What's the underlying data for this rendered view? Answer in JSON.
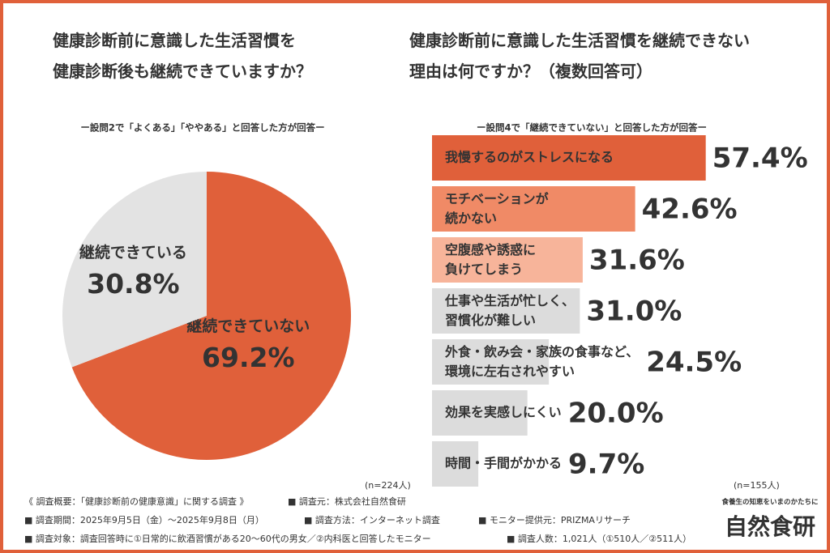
{
  "chart_data": [
    {
      "type": "pie",
      "title": "健康診断前に意識した生活習慣を\n健康診断後も継続できていますか？",
      "subtitle": "ー設問2で「よくある」「ややある」と回答した方が回答ー",
      "note": "(n=224人)",
      "categories": [
        "継続できている",
        "継続できていない"
      ],
      "values": [
        30.8,
        69.2
      ],
      "value_labels": [
        "30.8%",
        "69.2%"
      ],
      "colors": [
        "#e3e3e3",
        "#e0603a"
      ],
      "label_colors": [
        "#666666",
        "#ffffff"
      ]
    },
    {
      "type": "hbar",
      "title": "健康診断前に意識した生活習慣を継続できない\n理由は何ですか？（複数回答可）",
      "subtitle": "ー設問4で「継続できていない」と回答した方が回答ー",
      "note": "(n=155人)",
      "categories": [
        "我慢するのがストレスになる",
        "モチベーションが\n続かない",
        "空腹感や誘惑に\n負けてしまう",
        "仕事や生活が忙しく、\n習慣化が難しい",
        "外食・飲み会・家族の食事など、\n環境に左右されやすい",
        "効果を実感しにくい",
        "時間・手間がかかる"
      ],
      "values": [
        57.4,
        42.6,
        31.6,
        31.0,
        24.5,
        20.0,
        9.7
      ],
      "value_labels": [
        "57.4%",
        "42.6%",
        "31.6%",
        "31.0%",
        "24.5%",
        "20.0%",
        "9.7%"
      ],
      "colors": [
        "#e0603a",
        "#f08a66",
        "#f7b49a",
        "#dcdcdc",
        "#dcdcdc",
        "#dcdcdc",
        "#dcdcdc"
      ],
      "label_colors": [
        "#ffffff",
        "#ffffff",
        "#ffffff",
        "#333333",
        "#333333",
        "#333333",
        "#333333"
      ],
      "value_colors": [
        "#e0603a",
        "#f08a66",
        "#f7b49a",
        "#4a4a4a",
        "#4a4a4a",
        "#4a4a4a",
        "#4a4a4a"
      ],
      "xlim": [
        0,
        60
      ]
    }
  ],
  "footer": {
    "lines": [
      [
        "《 調査概要：「健康診断前の健康意識」に関する調査 》",
        "■ 調査元：株式会社自然食研"
      ],
      [
        "■ 調査期間：2025年9月5日（金）〜2025年9月8日（月）",
        "■ 調査方法：インターネット調査",
        "■ モニター提供元：PRIZMAリサーチ"
      ],
      [
        "■ 調査対象：調査回答時に①日常的に飲酒習慣がある20〜60代の男女／②内科医と回答したモニター",
        "■ 調査人数：1,021人（①510人／②511人）"
      ]
    ],
    "logo_tagline": "食養生の知恵をいまのかたちに",
    "logo": "自然食研"
  }
}
